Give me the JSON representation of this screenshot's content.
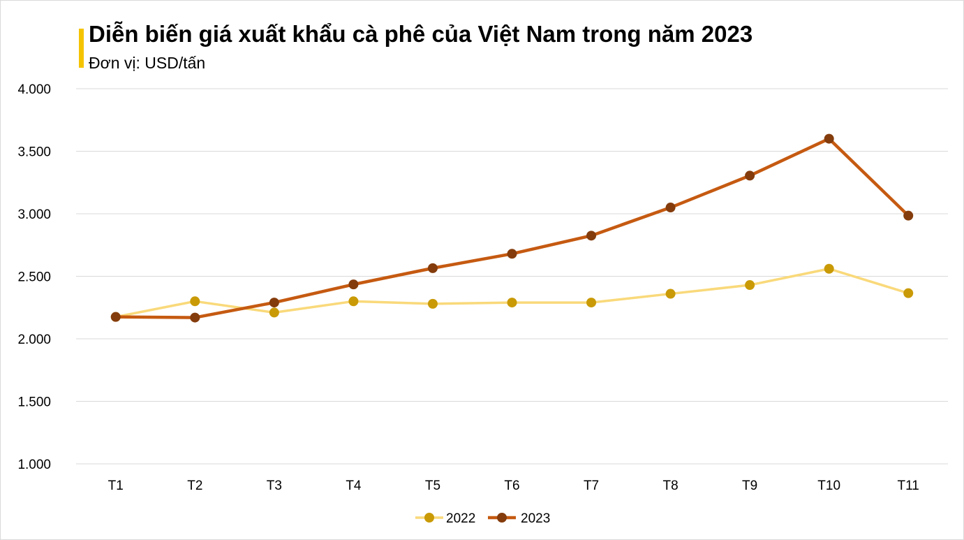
{
  "header": {
    "title": "Diễn biến giá xuất khẩu cà phê của Việt Nam trong năm 2023",
    "subtitle": "Đơn vị: USD/tấn",
    "accent_color": "#f4c400"
  },
  "chart_data": {
    "type": "line",
    "title": "Diễn biến giá xuất khẩu cà phê của Việt Nam trong năm 2023",
    "subtitle": "Đơn vị: USD/tấn",
    "categories": [
      "T1",
      "T2",
      "T3",
      "T4",
      "T5",
      "T6",
      "T7",
      "T8",
      "T9",
      "T10",
      "T11"
    ],
    "series": [
      {
        "name": "2022",
        "line_color": "#f9d97a",
        "marker_color": "#c99a06",
        "values": [
          2175,
          2300,
          2210,
          2300,
          2280,
          2290,
          2290,
          2360,
          2430,
          2560,
          2365
        ]
      },
      {
        "name": "2023",
        "line_color": "#c55a11",
        "marker_color": "#843c0c",
        "values": [
          2175,
          2170,
          2290,
          2435,
          2565,
          2680,
          2825,
          3050,
          3305,
          3600,
          2985
        ]
      }
    ],
    "ylim": [
      1000,
      4000
    ],
    "yticks": [
      1000,
      1500,
      2000,
      2500,
      3000,
      3500,
      4000
    ],
    "ytick_labels": [
      "1.000",
      "1.500",
      "2.000",
      "2.500",
      "3.000",
      "3.500",
      "4.000"
    ],
    "grid": true,
    "legend_position": "bottom"
  }
}
